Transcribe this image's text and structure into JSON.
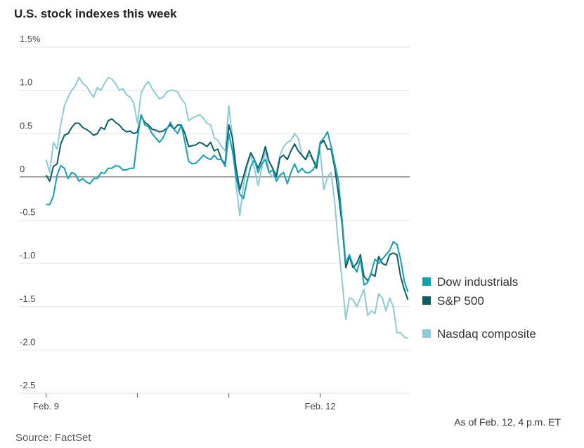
{
  "chart_data": {
    "type": "line",
    "title": "U.S. stock indexes this week",
    "source": "Source: FactSet",
    "note": "As of Feb. 12, 4 p.m. ET",
    "x": [
      0,
      0.04,
      0.08,
      0.12,
      0.16,
      0.2,
      0.24,
      0.28,
      0.32,
      0.36,
      0.4,
      0.44,
      0.48,
      0.52,
      0.56,
      0.6,
      0.64,
      0.68,
      0.72,
      0.76,
      0.8,
      0.84,
      0.88,
      0.92,
      0.96,
      1,
      1.04,
      1.08,
      1.12,
      1.16,
      1.2,
      1.24,
      1.28,
      1.32,
      1.36,
      1.4,
      1.44,
      1.48,
      1.52,
      1.56,
      1.6,
      1.64,
      1.68,
      1.72,
      1.76,
      1.8,
      1.84,
      1.88,
      1.92,
      1.96,
      2,
      2.04,
      2.08,
      2.12,
      2.16,
      2.2,
      2.24,
      2.28,
      2.32,
      2.36,
      2.4,
      2.44,
      2.48,
      2.52,
      2.56,
      2.6,
      2.64,
      2.68,
      2.72,
      2.76,
      2.8,
      2.84,
      2.88,
      2.92,
      2.96,
      3,
      3.04,
      3.08,
      3.12,
      3.16,
      3.2,
      3.24,
      3.28,
      3.32,
      3.36,
      3.4,
      3.44,
      3.48,
      3.52,
      3.56,
      3.6,
      3.64,
      3.68,
      3.72,
      3.76,
      3.8,
      3.84,
      3.88,
      3.92,
      3.96
    ],
    "xlim": [
      -0.12,
      3.98
    ],
    "xticks": [
      {
        "value": 0,
        "label": "Feb. 9"
      },
      {
        "value": 1,
        "label": null
      },
      {
        "value": 2,
        "label": null
      },
      {
        "value": 3,
        "label": "Feb. 12"
      }
    ],
    "ylim": [
      -2.5,
      1.5
    ],
    "yticks": [
      {
        "value": 1.5,
        "label": "1.5%"
      },
      {
        "value": 1,
        "label": "1.0"
      },
      0.5,
      0,
      -0.5,
      {
        "value": -1,
        "label": "-1.0"
      },
      -1.5,
      {
        "value": -2,
        "label": "-2.0"
      },
      -2.5
    ],
    "grid": true,
    "legend": "right",
    "series": [
      {
        "name": "Dow industrials",
        "color": "#13a0b3",
        "values": [
          -0.32,
          -0.32,
          -0.22,
          0.02,
          0.13,
          0.1,
          -0.02,
          0.05,
          0.03,
          -0.05,
          -0.02,
          -0.06,
          -0.08,
          -0.02,
          -0.02,
          0.05,
          0.04,
          0.1,
          0.1,
          0.13,
          0.12,
          0.08,
          0.08,
          0.1,
          0.1,
          0.45,
          0.72,
          0.6,
          0.58,
          0.5,
          0.45,
          0.4,
          0.45,
          0.55,
          0.63,
          0.55,
          0.5,
          0.6,
          0.4,
          0.18,
          0.15,
          0.16,
          0.2,
          0.25,
          0.22,
          0.2,
          0.25,
          0.2,
          0.2,
          0.12,
          0.5,
          0.3,
          0,
          -0.2,
          -0.25,
          -0.05,
          0.12,
          0.2,
          0.05,
          0.15,
          0.2,
          0.05,
          0.08,
          -0.05,
          0.02,
          0.05,
          -0.08,
          0.05,
          0.15,
          0.05,
          0.1,
          0.05,
          0.05,
          0.08,
          0.15,
          0.4,
          0.45,
          0.52,
          0.35,
          0.15,
          -0.05,
          -0.5,
          -1,
          -0.9,
          -1.02,
          -1.1,
          -0.95,
          -1.25,
          -1.22,
          -1.1,
          -0.95,
          -1,
          -0.95,
          -0.9,
          -0.85,
          -0.75,
          -0.78,
          -0.95,
          -1.2,
          -1.33
        ]
      },
      {
        "name": "S&P 500",
        "color": "#0c5c63",
        "values": [
          0.02,
          -0.05,
          0.12,
          0.15,
          0.38,
          0.48,
          0.5,
          0.57,
          0.62,
          0.62,
          0.57,
          0.55,
          0.52,
          0.48,
          0.5,
          0.57,
          0.55,
          0.65,
          0.67,
          0.63,
          0.6,
          0.55,
          0.52,
          0.53,
          0.5,
          0.52,
          0.7,
          0.63,
          0.6,
          0.55,
          0.54,
          0.52,
          0.53,
          0.56,
          0.6,
          0.55,
          0.6,
          0.6,
          0.5,
          0.35,
          0.36,
          0.37,
          0.4,
          0.38,
          0.35,
          0.4,
          0.3,
          0.32,
          0.2,
          0.15,
          0.6,
          0.45,
          0.1,
          -0.15,
          0,
          0.15,
          0.28,
          0.2,
          0.1,
          0.2,
          0.35,
          0.18,
          0.1,
          0,
          0.22,
          0.25,
          0.2,
          0.3,
          0.38,
          0.3,
          0.25,
          0.2,
          0.3,
          0.2,
          0.1,
          0.38,
          0.42,
          0.32,
          0.32,
          0.1,
          -0.2,
          -0.55,
          -1.05,
          -0.92,
          -1.05,
          -1,
          -0.9,
          -1.15,
          -1.2,
          -1.12,
          -1.15,
          -0.92,
          -1,
          -1.02,
          -0.9,
          -0.88,
          -0.9,
          -1.15,
          -1.3,
          -1.42
        ]
      },
      {
        "name": "Nasdaq composite",
        "color": "#8ecad6",
        "values": [
          0.2,
          0.05,
          0.4,
          0.32,
          0.6,
          0.82,
          0.92,
          1,
          1.05,
          1.15,
          1.08,
          1.05,
          0.98,
          0.92,
          1.03,
          1,
          1.08,
          1.15,
          1.13,
          1.08,
          1,
          1.02,
          0.95,
          0.92,
          0.85,
          0.62,
          0.97,
          1.05,
          1.1,
          1.02,
          0.96,
          0.9,
          0.92,
          0.98,
          1,
          1,
          0.98,
          0.9,
          0.85,
          0.65,
          0.68,
          0.7,
          0.72,
          0.68,
          0.62,
          0.6,
          0.45,
          0.42,
          0.35,
          0.3,
          0.82,
          0.45,
          -0.1,
          -0.45,
          -0.1,
          0.12,
          0.25,
          0.1,
          -0.1,
          0.1,
          0.3,
          0.05,
          0,
          0.05,
          0.25,
          0.35,
          0.4,
          0.42,
          0.5,
          0.45,
          0.25,
          0.2,
          0.25,
          0.2,
          0.15,
          0.3,
          -0.15,
          0,
          0.05,
          -0.3,
          -0.8,
          -1.2,
          -1.65,
          -1.4,
          -1.42,
          -1.5,
          -1.4,
          -1.3,
          -1.6,
          -1.55,
          -1.58,
          -1.35,
          -1.4,
          -1.55,
          -1.4,
          -1.5,
          -1.8,
          -1.8,
          -1.85,
          -1.87
        ]
      }
    ]
  }
}
